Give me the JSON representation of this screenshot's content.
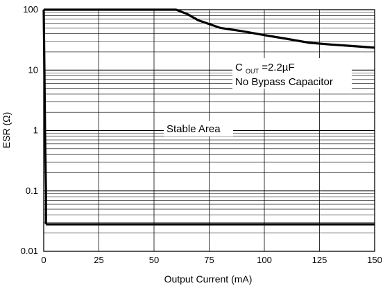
{
  "chart_data": {
    "type": "line",
    "xlabel": "Output Current (mA)",
    "ylabel": "ESR (Ω)",
    "xlim": [
      0,
      150
    ],
    "ylim": [
      0.01,
      100
    ],
    "y_scale": "log",
    "grid": true,
    "x_ticks": [
      {
        "value": 0,
        "label": "0"
      },
      {
        "value": 25,
        "label": "25"
      },
      {
        "value": 50,
        "label": "50"
      },
      {
        "value": 75,
        "label": "75"
      },
      {
        "value": 100,
        "label": "100"
      },
      {
        "value": 125,
        "label": "125"
      },
      {
        "value": 150,
        "label": "150"
      }
    ],
    "y_ticks": [
      {
        "value": 0.01,
        "label": "0.01"
      },
      {
        "value": 0.1,
        "label": "0.1"
      },
      {
        "value": 1,
        "label": "1"
      },
      {
        "value": 10,
        "label": "10"
      },
      {
        "value": 100,
        "label": "100"
      }
    ],
    "series": [
      {
        "role": "upper-boundary",
        "x": [
          0,
          60,
          65,
          70,
          80,
          90,
          100,
          110,
          120,
          130,
          140,
          150
        ],
        "y": [
          100,
          100,
          85,
          67,
          50,
          44,
          38,
          33,
          28.5,
          26.5,
          25,
          23.5
        ]
      },
      {
        "role": "lower-boundary",
        "x": [
          1,
          150
        ],
        "y": [
          0.028,
          0.028
        ]
      },
      {
        "role": "left-boundary",
        "x": [
          0,
          0.3,
          0.6,
          1,
          1
        ],
        "y": [
          100,
          10,
          1,
          0.1,
          0.028
        ]
      }
    ],
    "annotations": {
      "condition_main": "C",
      "condition_sub": "OUT",
      "condition_rest": "=2.2µF",
      "bypass": "No Bypass Capacitor",
      "region": "Stable Area"
    }
  }
}
